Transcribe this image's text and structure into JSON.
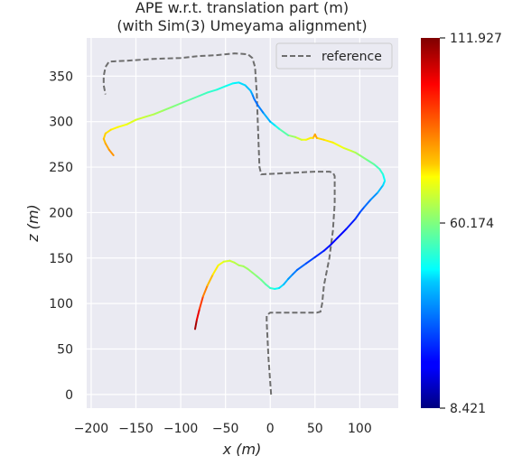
{
  "chart_data": {
    "type": "line",
    "title": "APE w.r.t. translation part (m)",
    "subtitle": "(with Sim(3) Umeyama alignment)",
    "xlabel": "x (m)",
    "ylabel": "z (m)",
    "xlim": [
      -205,
      143
    ],
    "ylim": [
      -15,
      392
    ],
    "xticks": [
      -200,
      -150,
      -100,
      -50,
      0,
      50,
      100
    ],
    "xtick_labels": [
      "−200",
      "−150",
      "−100",
      "−50",
      "0",
      "50",
      "100"
    ],
    "yticks": [
      0,
      50,
      100,
      150,
      200,
      250,
      300,
      350
    ],
    "ytick_labels": [
      "0",
      "50",
      "100",
      "150",
      "200",
      "250",
      "300",
      "350"
    ],
    "grid": true,
    "legend": {
      "position": "top-right",
      "entries": [
        "reference"
      ]
    },
    "colorbar": {
      "colormap": "jet",
      "min": 8.421,
      "max": 111.927,
      "ticks": [
        8.421,
        60.174,
        111.927
      ],
      "tick_labels": [
        "8.421",
        "60.174",
        "111.927"
      ]
    },
    "reference": {
      "name": "reference",
      "style": "dashed",
      "color": "#6e6e6e",
      "x": [
        1,
        -2,
        -4,
        -4,
        0,
        25,
        45,
        52,
        56,
        58,
        60,
        66,
        70,
        72,
        72,
        70,
        66,
        50,
        30,
        10,
        -10,
        -12,
        -14,
        -15,
        -17,
        -20,
        -25,
        -40,
        -60,
        -80,
        -100,
        -130,
        -160,
        -180,
        -184,
        -186,
        -186,
        -184
      ],
      "y": [
        0,
        40,
        80,
        87,
        90,
        90,
        90,
        90,
        91,
        100,
        120,
        150,
        180,
        210,
        240,
        244,
        245,
        245,
        244,
        243,
        242,
        250,
        300,
        330,
        360,
        370,
        374,
        375,
        373,
        372,
        370,
        369,
        367,
        366,
        360,
        350,
        340,
        330
      ]
    },
    "estimate": {
      "name": "",
      "x": [
        -84,
        -82,
        -79,
        -75,
        -70,
        -64,
        -58,
        -52,
        -45,
        -40,
        -35,
        -30,
        -25,
        -20,
        -15,
        -10,
        -5,
        0,
        5,
        10,
        15,
        20,
        25,
        30,
        40,
        50,
        60,
        68,
        75,
        85,
        95,
        100,
        105,
        112,
        120,
        126,
        128,
        126,
        122,
        116,
        108,
        100,
        95,
        90,
        82,
        70,
        60,
        52,
        50,
        48,
        45,
        40,
        35,
        28,
        20,
        10,
        5,
        0,
        -8,
        -14,
        -18,
        -20,
        -22,
        -28,
        -35,
        -42,
        -50,
        -60,
        -70,
        -80,
        -90,
        -100,
        -110,
        -120,
        -130,
        -140,
        -150,
        -160,
        -170,
        -178,
        -184,
        -186,
        -184,
        -180,
        -175
      ],
      "y": [
        72,
        82,
        94,
        108,
        120,
        132,
        142,
        146,
        147,
        145,
        142,
        141,
        138,
        134,
        130,
        126,
        121,
        117,
        116,
        117,
        121,
        127,
        132,
        137,
        144,
        151,
        158,
        165,
        172,
        182,
        193,
        200,
        206,
        214,
        222,
        230,
        235,
        242,
        248,
        253,
        258,
        263,
        266,
        268,
        271,
        277,
        280,
        282,
        286,
        282,
        282,
        280,
        280,
        283,
        285,
        292,
        296,
        300,
        310,
        318,
        325,
        330,
        334,
        340,
        343,
        342,
        339,
        335,
        332,
        328,
        324,
        320,
        316,
        312,
        308,
        305,
        302,
        297,
        294,
        291,
        287,
        281,
        276,
        269,
        263
      ],
      "error": [
        111,
        105,
        97,
        89,
        83,
        77,
        73,
        70,
        68,
        66,
        65,
        64,
        63,
        62,
        61,
        59,
        57,
        54,
        50,
        46,
        42,
        38,
        35,
        33,
        30,
        27,
        24,
        22,
        21,
        22,
        25,
        28,
        31,
        34,
        38,
        42,
        46,
        50,
        53,
        56,
        59,
        62,
        64,
        67,
        70,
        74,
        76,
        78,
        86,
        78,
        76,
        73,
        70,
        66,
        60,
        52,
        47,
        42,
        36,
        33,
        32,
        36,
        40,
        42,
        45,
        47,
        49,
        51,
        53,
        55,
        57,
        59,
        61,
        63,
        65,
        67,
        69,
        71,
        73,
        75,
        77,
        79,
        81,
        83,
        85
      ]
    }
  }
}
